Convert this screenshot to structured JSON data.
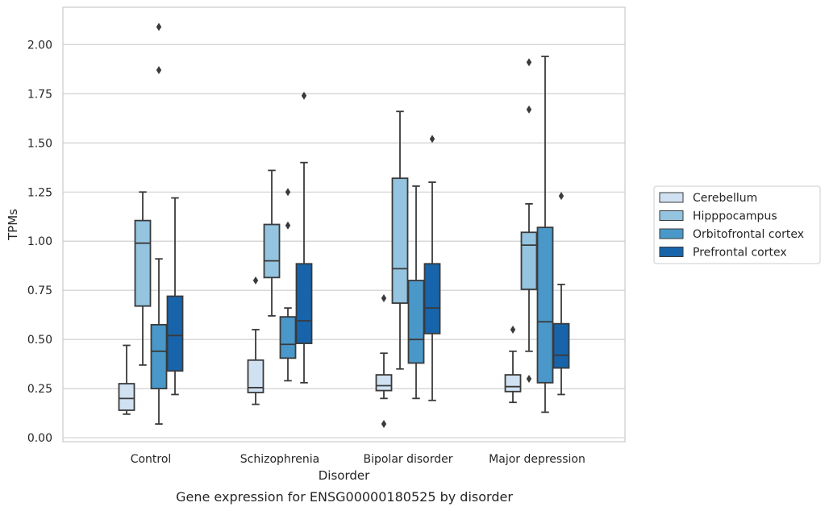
{
  "chart_data": {
    "type": "box",
    "caption": "Gene expression for ENSG00000180525 by disorder",
    "xlabel": "Disorder",
    "ylabel": "TPMs",
    "ylim": [
      -0.02,
      2.19
    ],
    "yticks": [
      0.0,
      0.25,
      0.5,
      0.75,
      1.0,
      1.25,
      1.5,
      1.75,
      2.0
    ],
    "ytick_labels": [
      "0.00",
      "0.25",
      "0.50",
      "0.75",
      "1.00",
      "1.25",
      "1.50",
      "1.75",
      "2.00"
    ],
    "grid": "horizontal",
    "legend_position": "right",
    "categories": [
      "Control",
      "Schizophrenia",
      "Bipolar disorder",
      "Major depression"
    ],
    "series": [
      {
        "name": "Cerebellum",
        "color": "#d0e1f2",
        "boxes": [
          {
            "whislo": 0.12,
            "q1": 0.14,
            "med": 0.2,
            "q3": 0.275,
            "whishi": 0.47,
            "fliers": []
          },
          {
            "whislo": 0.17,
            "q1": 0.23,
            "med": 0.255,
            "q3": 0.395,
            "whishi": 0.55,
            "fliers": [
              0.8
            ]
          },
          {
            "whislo": 0.2,
            "q1": 0.24,
            "med": 0.265,
            "q3": 0.32,
            "whishi": 0.43,
            "fliers": [
              0.71,
              0.07
            ]
          },
          {
            "whislo": 0.18,
            "q1": 0.235,
            "med": 0.26,
            "q3": 0.32,
            "whishi": 0.44,
            "fliers": [
              0.55
            ]
          }
        ]
      },
      {
        "name": "Hipppocampus",
        "color": "#94c4df",
        "boxes": [
          {
            "whislo": 0.37,
            "q1": 0.67,
            "med": 0.99,
            "q3": 1.105,
            "whishi": 1.25,
            "fliers": []
          },
          {
            "whislo": 0.62,
            "q1": 0.815,
            "med": 0.9,
            "q3": 1.085,
            "whishi": 1.36,
            "fliers": []
          },
          {
            "whislo": 0.35,
            "q1": 0.685,
            "med": 0.86,
            "q3": 1.32,
            "whishi": 1.66,
            "fliers": []
          },
          {
            "whislo": 0.44,
            "q1": 0.755,
            "med": 0.98,
            "q3": 1.045,
            "whishi": 1.19,
            "fliers": [
              1.91,
              1.67,
              0.3
            ]
          }
        ]
      },
      {
        "name": "Orbitofrontal cortex",
        "color": "#4a98c9",
        "boxes": [
          {
            "whislo": 0.07,
            "q1": 0.25,
            "med": 0.44,
            "q3": 0.575,
            "whishi": 0.91,
            "fliers": [
              2.09,
              1.87
            ]
          },
          {
            "whislo": 0.29,
            "q1": 0.405,
            "med": 0.475,
            "q3": 0.615,
            "whishi": 0.66,
            "fliers": [
              1.25,
              1.08
            ]
          },
          {
            "whislo": 0.2,
            "q1": 0.38,
            "med": 0.5,
            "q3": 0.8,
            "whishi": 1.28,
            "fliers": []
          },
          {
            "whislo": 0.13,
            "q1": 0.28,
            "med": 0.59,
            "q3": 1.07,
            "whishi": 1.94,
            "fliers": []
          }
        ]
      },
      {
        "name": "Prefrontal cortex",
        "color": "#1764ab",
        "boxes": [
          {
            "whislo": 0.22,
            "q1": 0.34,
            "med": 0.52,
            "q3": 0.72,
            "whishi": 1.22,
            "fliers": []
          },
          {
            "whislo": 0.28,
            "q1": 0.48,
            "med": 0.595,
            "q3": 0.885,
            "whishi": 1.4,
            "fliers": [
              1.74
            ]
          },
          {
            "whislo": 0.19,
            "q1": 0.53,
            "med": 0.66,
            "q3": 0.885,
            "whishi": 1.3,
            "fliers": [
              1.52
            ]
          },
          {
            "whislo": 0.22,
            "q1": 0.355,
            "med": 0.42,
            "q3": 0.58,
            "whishi": 0.78,
            "fliers": [
              1.23
            ]
          }
        ]
      }
    ]
  }
}
